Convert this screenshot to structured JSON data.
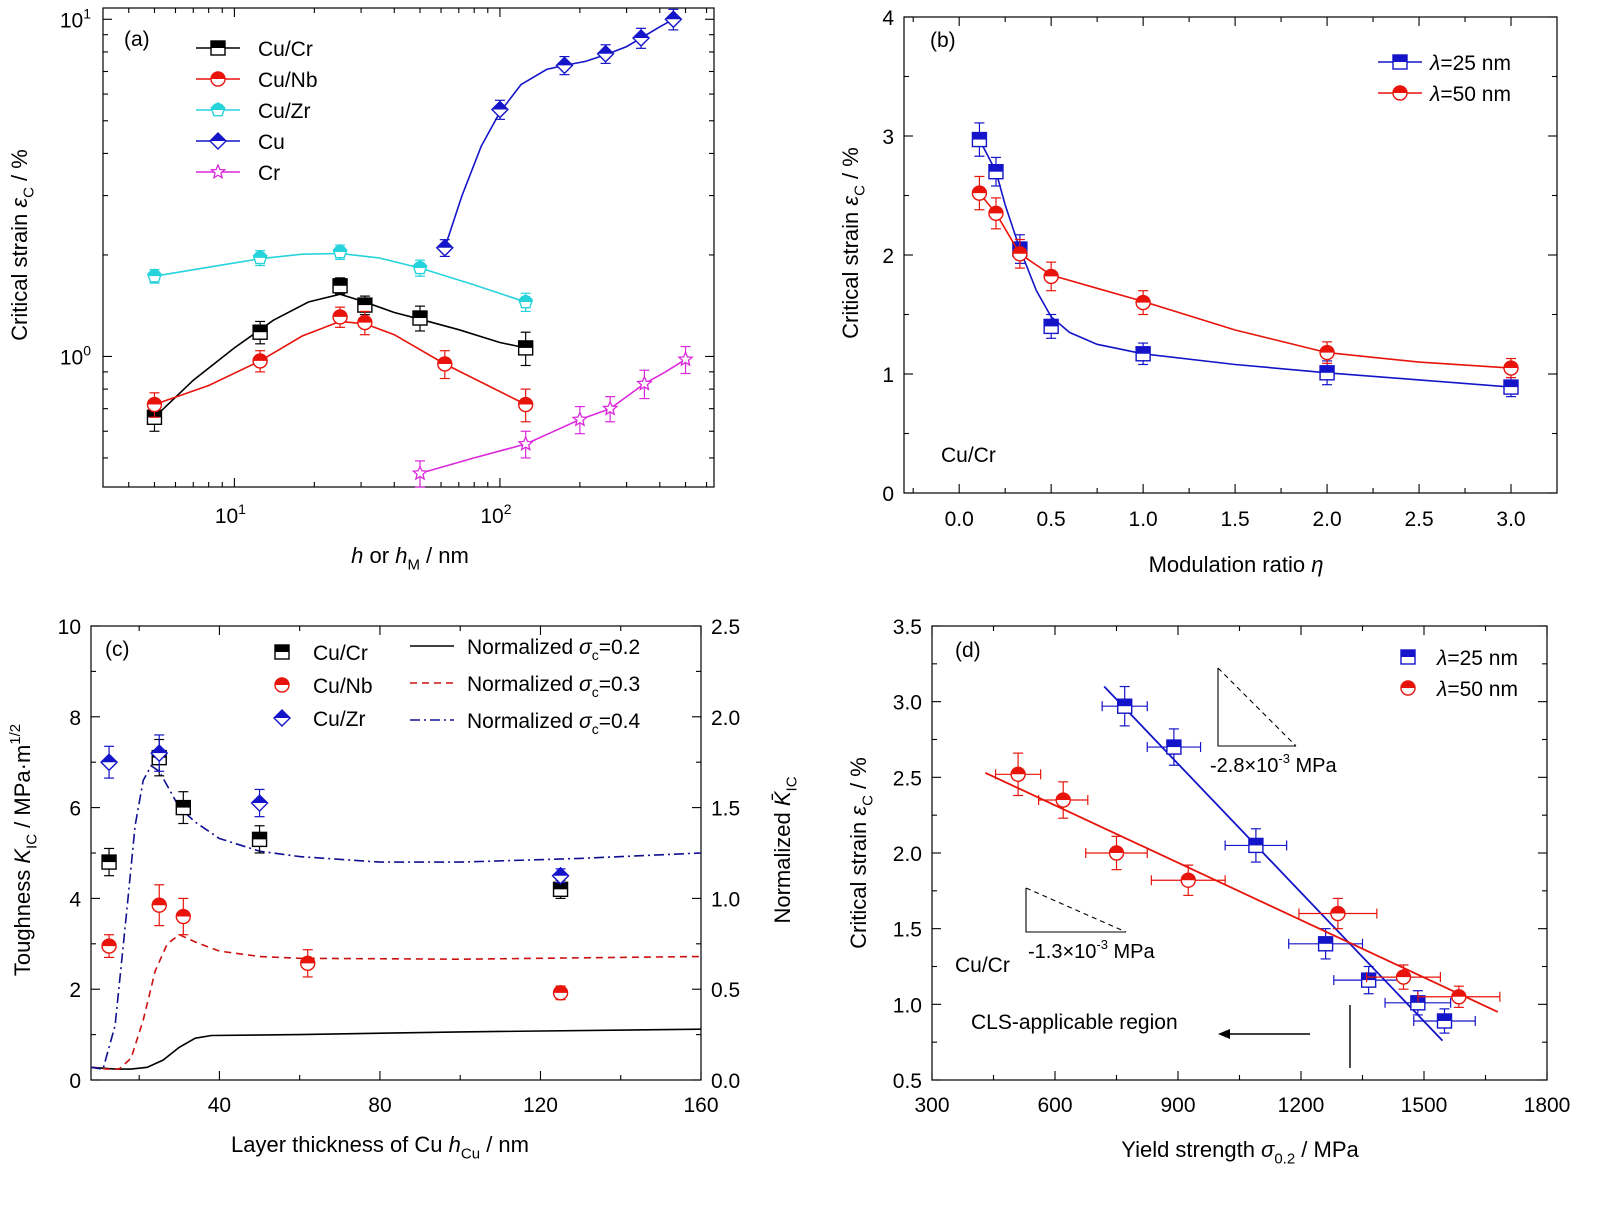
{
  "chart_data": [
    {
      "id": "a",
      "type": "line",
      "panel_label": "(a)",
      "xlabel": {
        "italic": "h",
        "mid": " or ",
        "italic2": "h",
        "sub": "M",
        "tail": " / nm"
      },
      "ylabel": {
        "text": "Critical strain ",
        "italic": "ε",
        "sub": "C",
        "tail": " / %"
      },
      "xscale": "log",
      "yscale": "log",
      "xlim": [
        3.2,
        640
      ],
      "ylim": [
        0.41,
        10.8
      ],
      "xticks": [
        {
          "v": 10,
          "b": "10",
          "e": "1"
        },
        {
          "v": 100,
          "b": "10",
          "e": "2"
        }
      ],
      "yticks": [
        {
          "v": 1,
          "b": "10",
          "e": "0"
        },
        {
          "v": 10,
          "b": "10",
          "e": "1"
        }
      ],
      "legend_position": "top-left",
      "series": [
        {
          "name": "Cu/Cr",
          "color": "#000000",
          "marker": "square",
          "x": [
            5,
            12.5,
            25,
            31,
            50,
            125
          ],
          "y": [
            0.66,
            1.18,
            1.62,
            1.42,
            1.3,
            1.06
          ],
          "err": [
            0.06,
            0.09,
            0.09,
            0.09,
            0.11,
            0.12
          ],
          "curve_x": [
            5,
            7,
            10,
            14,
            19,
            25,
            31,
            40,
            50,
            70,
            100,
            125
          ],
          "curve_y": [
            0.66,
            0.85,
            1.06,
            1.28,
            1.45,
            1.53,
            1.45,
            1.35,
            1.29,
            1.2,
            1.1,
            1.06
          ]
        },
        {
          "name": "Cu/Nb",
          "color": "#e8140c",
          "marker": "circle",
          "x": [
            5,
            12.5,
            25,
            31,
            62,
            125
          ],
          "y": [
            0.72,
            0.97,
            1.31,
            1.26,
            0.95,
            0.72
          ],
          "err": [
            0.06,
            0.07,
            0.09,
            0.1,
            0.09,
            0.08
          ],
          "curve_x": [
            5,
            8,
            12.5,
            18,
            25,
            31,
            40,
            62,
            90,
            125
          ],
          "curve_y": [
            0.72,
            0.82,
            0.97,
            1.15,
            1.27,
            1.25,
            1.16,
            0.95,
            0.82,
            0.72
          ]
        },
        {
          "name": "Cu/Zr",
          "color": "#27d3db",
          "marker": "pentagon",
          "x": [
            5,
            12.5,
            25,
            50,
            125
          ],
          "y": [
            1.73,
            1.96,
            2.04,
            1.83,
            1.45
          ],
          "err": [
            0.08,
            0.1,
            0.1,
            0.1,
            0.09
          ],
          "curve_x": [
            5,
            8,
            12.5,
            18,
            25,
            35,
            50,
            80,
            125
          ],
          "curve_y": [
            1.73,
            1.84,
            1.95,
            2.01,
            2.02,
            1.96,
            1.83,
            1.63,
            1.45
          ]
        },
        {
          "name": "Cu",
          "color": "#1414c8",
          "marker": "diamond",
          "x": [
            62,
            100,
            175,
            250,
            340,
            450
          ],
          "y": [
            2.1,
            5.4,
            7.3,
            7.9,
            8.8,
            10.0
          ],
          "err": [
            0.12,
            0.35,
            0.45,
            0.5,
            0.6,
            0.7
          ],
          "curve_x": [
            62,
            72,
            85,
            100,
            120,
            150,
            175,
            210,
            250,
            300,
            340,
            400,
            450
          ],
          "curve_y": [
            2.1,
            3.0,
            4.2,
            5.3,
            6.4,
            7.1,
            7.3,
            7.5,
            7.85,
            8.3,
            8.8,
            9.5,
            10.0
          ]
        },
        {
          "name": "Cr",
          "color": "#dc28dc",
          "marker": "star",
          "x": [
            50,
            125,
            200,
            260,
            350,
            500
          ],
          "y": [
            0.45,
            0.55,
            0.65,
            0.7,
            0.83,
            0.98
          ],
          "err": [
            0.04,
            0.05,
            0.06,
            0.06,
            0.08,
            0.09
          ],
          "curve_x": [
            50,
            80,
            125,
            160,
            200,
            260,
            350,
            420,
            500
          ],
          "curve_y": [
            0.45,
            0.5,
            0.55,
            0.6,
            0.65,
            0.7,
            0.83,
            0.9,
            0.98
          ]
        }
      ]
    },
    {
      "id": "b",
      "type": "line",
      "panel_label": "(b)",
      "xlabel": {
        "text": "Modulation ratio ",
        "italic": "η"
      },
      "ylabel": {
        "text": "Critical strain ",
        "italic": "ε",
        "sub": "C",
        "tail": " / %"
      },
      "xscale": "linear",
      "yscale": "linear",
      "xlim": [
        -0.3,
        3.25
      ],
      "ylim": [
        0,
        4
      ],
      "xticks": [
        "0.0",
        "0.5",
        "1.0",
        "1.5",
        "2.0",
        "2.5",
        "3.0"
      ],
      "yticks": [
        "0",
        "1",
        "2",
        "3",
        "4"
      ],
      "annotation": "Cu/Cr",
      "legend_position": "top-right",
      "series": [
        {
          "name_italic": "λ",
          "name_rest": "=25 nm",
          "color": "#1414c8",
          "marker": "square",
          "x": [
            0.11,
            0.2,
            0.33,
            0.5,
            1.0,
            2.0,
            3.0
          ],
          "y": [
            2.97,
            2.7,
            2.05,
            1.4,
            1.17,
            1.01,
            0.89
          ],
          "err": [
            0.14,
            0.12,
            0.12,
            0.1,
            0.09,
            0.1,
            0.08
          ],
          "curve_x": [
            0.11,
            0.15,
            0.2,
            0.25,
            0.33,
            0.42,
            0.5,
            0.6,
            0.75,
            1.0,
            1.5,
            2.0,
            2.5,
            3.0
          ],
          "curve_y": [
            2.97,
            2.85,
            2.7,
            2.42,
            2.05,
            1.7,
            1.48,
            1.35,
            1.25,
            1.17,
            1.08,
            1.01,
            0.95,
            0.89
          ]
        },
        {
          "name_italic": "λ",
          "name_rest": "=50 nm",
          "color": "#e8140c",
          "marker": "circle",
          "x": [
            0.11,
            0.2,
            0.33,
            0.5,
            1.0,
            2.0,
            3.0
          ],
          "y": [
            2.52,
            2.35,
            2.01,
            1.82,
            1.6,
            1.18,
            1.05
          ],
          "err": [
            0.14,
            0.13,
            0.12,
            0.12,
            0.1,
            0.09,
            0.08
          ],
          "curve_x": [
            0.11,
            0.2,
            0.33,
            0.5,
            0.75,
            1.0,
            1.5,
            2.0,
            2.5,
            3.0
          ],
          "curve_y": [
            2.52,
            2.35,
            2.01,
            1.83,
            1.72,
            1.61,
            1.37,
            1.18,
            1.1,
            1.05
          ]
        }
      ]
    },
    {
      "id": "c",
      "type": "line",
      "panel_label": "(c)",
      "xlabel": {
        "text": "Layer thickness of Cu  ",
        "italic": "h",
        "sub": "Cu",
        "tail": " / nm"
      },
      "ylabel": {
        "text": "Toughness ",
        "italic": "K",
        "sub": "IC",
        "tail": " / MPa·m",
        "sup": "1/2"
      },
      "y2label": {
        "text": "Normalized ",
        "italic": "K̄",
        "sub": "IC"
      },
      "xscale": "linear",
      "yscale": "linear",
      "xlim": [
        8,
        160
      ],
      "ylim": [
        0,
        10
      ],
      "y2lim": [
        0,
        2.5
      ],
      "xticks": [
        "40",
        "80",
        "120",
        "160"
      ],
      "yticks": [
        "0",
        "2",
        "4",
        "6",
        "8",
        "10"
      ],
      "y2ticks": [
        "0.0",
        "0.5",
        "1.0",
        "1.5",
        "2.0",
        "2.5"
      ],
      "legend_position": "top",
      "series": [
        {
          "name": "Cu/Cr",
          "color": "#000000",
          "marker": "square",
          "x": [
            12.5,
            25,
            31,
            50,
            125
          ],
          "y": [
            4.8,
            7.1,
            6.0,
            5.3,
            4.2
          ],
          "err": [
            0.3,
            0.4,
            0.35,
            0.3,
            0.2
          ]
        },
        {
          "name": "Cu/Nb",
          "color": "#e8140c",
          "marker": "circle",
          "x": [
            12.5,
            25,
            31,
            62,
            125
          ],
          "y": [
            2.95,
            3.85,
            3.6,
            2.57,
            1.92
          ],
          "err": [
            0.25,
            0.45,
            0.4,
            0.3,
            0.15
          ]
        },
        {
          "name": "Cu/Zr",
          "color": "#1414c8",
          "marker": "diamond",
          "x": [
            12.5,
            25,
            50,
            125
          ],
          "y": [
            7.0,
            7.2,
            6.1,
            4.5
          ],
          "err": [
            0.35,
            0.4,
            0.3,
            0.15
          ]
        }
      ],
      "curves": [
        {
          "name": "Normalized ",
          "italic": "σ",
          "sub": "c",
          "rest": "=0.2",
          "color": "#000000",
          "dash": "",
          "x": [
            8,
            14,
            18,
            22,
            26,
            30,
            34,
            38,
            60,
            100,
            160
          ],
          "y2": [
            0.07,
            0.06,
            0.06,
            0.07,
            0.11,
            0.18,
            0.23,
            0.245,
            0.25,
            0.265,
            0.28
          ]
        },
        {
          "name": "Normalized ",
          "italic": "σ",
          "sub": "c",
          "rest": "=0.3",
          "color": "#cc1010",
          "dash": "7,5",
          "x": [
            8,
            12,
            15,
            18,
            21,
            24,
            27,
            30,
            34,
            40,
            50,
            60,
            100,
            160
          ],
          "y2": [
            0.07,
            0.06,
            0.06,
            0.12,
            0.33,
            0.6,
            0.75,
            0.8,
            0.76,
            0.71,
            0.68,
            0.67,
            0.665,
            0.68
          ]
        },
        {
          "name": "Normalized ",
          "italic": "σ",
          "sub": "c",
          "rest": "=0.4",
          "color": "#101090",
          "dash": "10,4,2,4",
          "x": [
            8,
            11,
            14,
            17,
            19,
            21,
            23,
            25,
            27,
            30,
            34,
            40,
            50,
            60,
            80,
            100,
            130,
            160
          ],
          "y2": [
            0.07,
            0.06,
            0.3,
            0.95,
            1.4,
            1.65,
            1.73,
            1.7,
            1.62,
            1.5,
            1.42,
            1.33,
            1.26,
            1.23,
            1.2,
            1.2,
            1.22,
            1.25
          ]
        }
      ]
    },
    {
      "id": "d",
      "type": "scatter",
      "panel_label": "(d)",
      "xlabel": {
        "text": "Yield strength ",
        "italic": "σ",
        "sub": "0.2",
        "tail": " / MPa"
      },
      "ylabel": {
        "text": "Critical strain ",
        "italic": "ε",
        "sub": "C",
        "tail": " / %"
      },
      "xscale": "linear",
      "yscale": "linear",
      "xlim": [
        300,
        1800
      ],
      "ylim": [
        0.5,
        3.5
      ],
      "xticks": [
        "300",
        "600",
        "900",
        "1200",
        "1500",
        "1800"
      ],
      "yticks": [
        "0.5",
        "1.0",
        "1.5",
        "2.0",
        "2.5",
        "3.0",
        "3.5"
      ],
      "annotation": "Cu/Cr",
      "region_label": "CLS-applicable region",
      "slope_blue": {
        "pre": "-2.8×10",
        "sup": "-3",
        "post": " MPa"
      },
      "slope_red": {
        "pre": "-1.3×10",
        "sup": "-3",
        "post": " MPa"
      },
      "legend_position": "top-right",
      "series": [
        {
          "name_italic": "λ",
          "name_rest": "=25 nm",
          "color": "#1414c8",
          "marker": "square",
          "x": [
            770,
            890,
            1090,
            1260,
            1365,
            1485,
            1550
          ],
          "y": [
            2.97,
            2.7,
            2.05,
            1.4,
            1.16,
            1.01,
            0.89
          ],
          "xerr": [
            55,
            65,
            75,
            90,
            85,
            80,
            75
          ],
          "yerr": [
            0.13,
            0.12,
            0.11,
            0.1,
            0.09,
            0.08,
            0.08
          ],
          "fit_x": [
            720,
            1545
          ],
          "fit_y": [
            3.1,
            0.76
          ]
        },
        {
          "name_italic": "λ",
          "name_rest": "=50 nm",
          "color": "#e8140c",
          "marker": "circle",
          "x": [
            510,
            620,
            750,
            925,
            1290,
            1450,
            1585
          ],
          "y": [
            2.52,
            2.35,
            2.0,
            1.82,
            1.6,
            1.18,
            1.05
          ],
          "xerr": [
            55,
            60,
            75,
            90,
            95,
            90,
            100
          ],
          "yerr": [
            0.14,
            0.12,
            0.11,
            0.1,
            0.1,
            0.08,
            0.07
          ],
          "fit_x": [
            430,
            1680
          ],
          "fit_y": [
            2.53,
            0.95
          ]
        }
      ]
    }
  ]
}
